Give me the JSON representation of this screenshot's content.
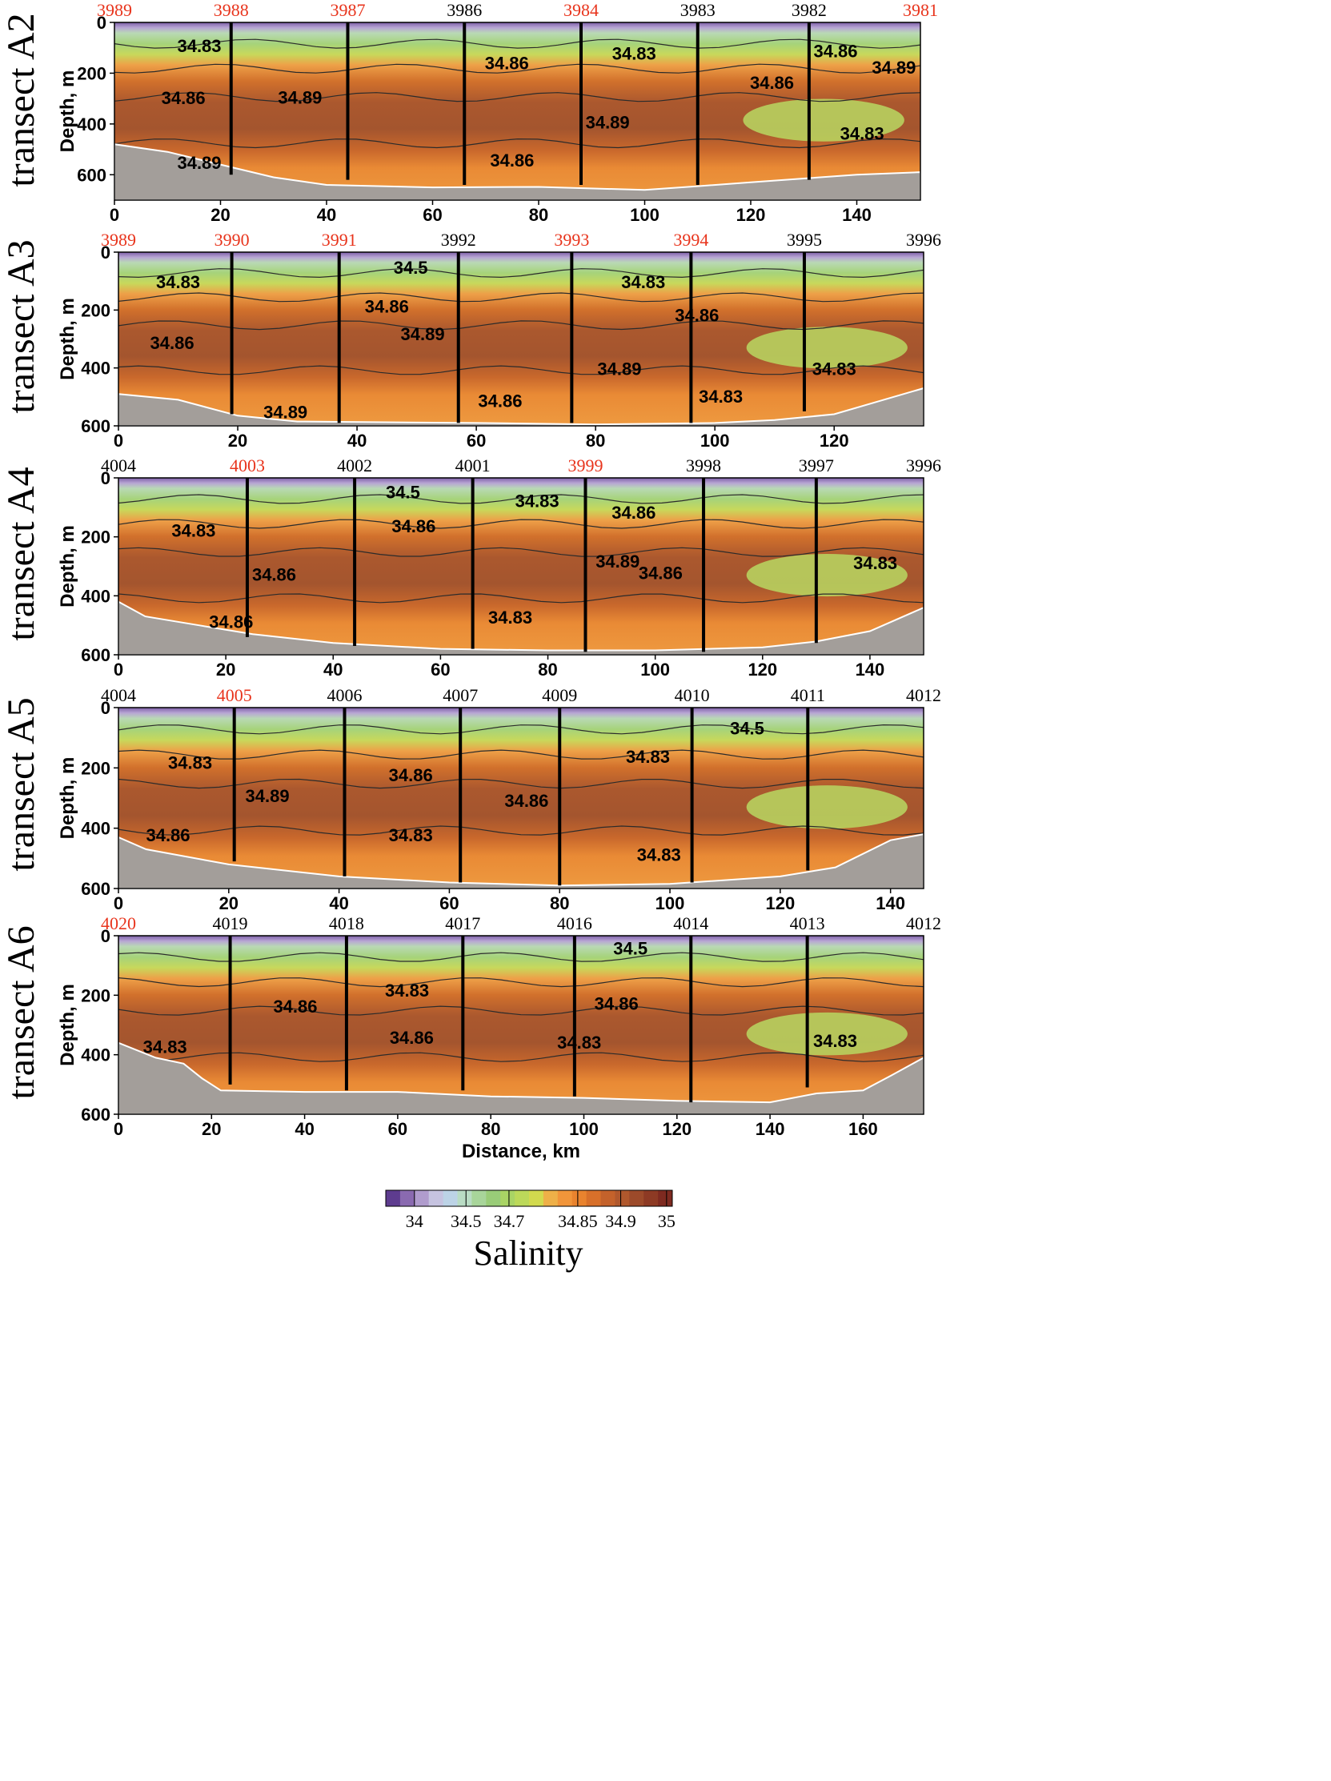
{
  "chart_data": [
    {
      "type": "heatmap",
      "title": "transect A2",
      "ylabel": "Depth, m",
      "xlabel": "",
      "xlim": [
        0,
        152
      ],
      "ylim": [
        0,
        700
      ],
      "x_ticks": [
        "0",
        "20",
        "40",
        "60",
        "80",
        "100",
        "120",
        "140"
      ],
      "y_ticks": [
        "0",
        "200",
        "400",
        "600"
      ],
      "stations": [
        {
          "id": "3989",
          "x": 0,
          "highlight": true
        },
        {
          "id": "3988",
          "x": 22,
          "highlight": true
        },
        {
          "id": "3987",
          "x": 44,
          "highlight": true
        },
        {
          "id": "3986",
          "x": 66,
          "highlight": false
        },
        {
          "id": "3984",
          "x": 88,
          "highlight": true
        },
        {
          "id": "3983",
          "x": 110,
          "highlight": false
        },
        {
          "id": "3982",
          "x": 131,
          "highlight": false
        },
        {
          "id": "3981",
          "x": 152,
          "highlight": true
        }
      ],
      "cast_depths": [
        0,
        600,
        620,
        640,
        640,
        640,
        620,
        0
      ],
      "bottom": [
        [
          0,
          480
        ],
        [
          10,
          510
        ],
        [
          20,
          560
        ],
        [
          30,
          610
        ],
        [
          40,
          640
        ],
        [
          60,
          650
        ],
        [
          80,
          648
        ],
        [
          100,
          660
        ],
        [
          110,
          645
        ],
        [
          120,
          630
        ],
        [
          130,
          615
        ],
        [
          140,
          600
        ],
        [
          152,
          590
        ]
      ],
      "contour_labels": [
        {
          "text": "34.83",
          "x": 16,
          "y": 95
        },
        {
          "text": "34.86",
          "x": 13,
          "y": 300
        },
        {
          "text": "34.89",
          "x": 35,
          "y": 298
        },
        {
          "text": "34.89",
          "x": 16,
          "y": 555
        },
        {
          "text": "34.86",
          "x": 74,
          "y": 163
        },
        {
          "text": "34.83",
          "x": 98,
          "y": 125
        },
        {
          "text": "34.89",
          "x": 93,
          "y": 395
        },
        {
          "text": "34.86",
          "x": 75,
          "y": 545
        },
        {
          "text": "34.86",
          "x": 124,
          "y": 240
        },
        {
          "text": "34.86",
          "x": 136,
          "y": 115
        },
        {
          "text": "34.89",
          "x": 147,
          "y": 180
        },
        {
          "text": "34.83",
          "x": 141,
          "y": 440
        }
      ]
    },
    {
      "type": "heatmap",
      "title": "transect A3",
      "ylabel": "Depth, m",
      "xlabel": "",
      "xlim": [
        0,
        135
      ],
      "ylim": [
        0,
        600
      ],
      "x_ticks": [
        "0",
        "20",
        "40",
        "60",
        "80",
        "100",
        "120"
      ],
      "y_ticks": [
        "0",
        "200",
        "400",
        "600"
      ],
      "stations": [
        {
          "id": "3989",
          "x": 0,
          "highlight": true
        },
        {
          "id": "3990",
          "x": 19,
          "highlight": true
        },
        {
          "id": "3991",
          "x": 37,
          "highlight": true
        },
        {
          "id": "3992",
          "x": 57,
          "highlight": false
        },
        {
          "id": "3993",
          "x": 76,
          "highlight": true
        },
        {
          "id": "3994",
          "x": 96,
          "highlight": true
        },
        {
          "id": "3995",
          "x": 115,
          "highlight": false
        },
        {
          "id": "3996",
          "x": 135,
          "highlight": false
        }
      ],
      "cast_depths": [
        0,
        560,
        590,
        590,
        590,
        590,
        550,
        0
      ],
      "bottom": [
        [
          0,
          490
        ],
        [
          10,
          510
        ],
        [
          20,
          565
        ],
        [
          30,
          585
        ],
        [
          60,
          590
        ],
        [
          80,
          595
        ],
        [
          100,
          590
        ],
        [
          110,
          580
        ],
        [
          120,
          560
        ],
        [
          130,
          500
        ],
        [
          135,
          470
        ]
      ],
      "contour_labels": [
        {
          "text": "34.83",
          "x": 10,
          "y": 105
        },
        {
          "text": "34.5",
          "x": 49,
          "y": 55
        },
        {
          "text": "34.83",
          "x": 88,
          "y": 105
        },
        {
          "text": "34.86",
          "x": 45,
          "y": 190
        },
        {
          "text": "34.86",
          "x": 97,
          "y": 220
        },
        {
          "text": "34.86",
          "x": 9,
          "y": 315
        },
        {
          "text": "34.89",
          "x": 51,
          "y": 285
        },
        {
          "text": "34.89",
          "x": 84,
          "y": 405
        },
        {
          "text": "34.83",
          "x": 120,
          "y": 405
        },
        {
          "text": "34.83",
          "x": 101,
          "y": 500
        },
        {
          "text": "34.86",
          "x": 64,
          "y": 515
        },
        {
          "text": "34.89",
          "x": 28,
          "y": 555
        }
      ]
    },
    {
      "type": "heatmap",
      "title": "transect A4",
      "ylabel": "Depth, m",
      "xlabel": "",
      "xlim": [
        0,
        150
      ],
      "ylim": [
        0,
        600
      ],
      "x_ticks": [
        "0",
        "20",
        "40",
        "60",
        "80",
        "100",
        "120",
        "140"
      ],
      "y_ticks": [
        "0",
        "200",
        "400",
        "600"
      ],
      "stations": [
        {
          "id": "4004",
          "x": 0,
          "highlight": false
        },
        {
          "id": "4003",
          "x": 24,
          "highlight": true
        },
        {
          "id": "4002",
          "x": 44,
          "highlight": false
        },
        {
          "id": "4001",
          "x": 66,
          "highlight": false
        },
        {
          "id": "3999",
          "x": 87,
          "highlight": true
        },
        {
          "id": "3998",
          "x": 109,
          "highlight": false
        },
        {
          "id": "3997",
          "x": 130,
          "highlight": false
        },
        {
          "id": "3996",
          "x": 150,
          "highlight": false
        }
      ],
      "cast_depths": [
        0,
        540,
        570,
        580,
        590,
        590,
        560,
        0
      ],
      "bottom": [
        [
          0,
          420
        ],
        [
          5,
          470
        ],
        [
          15,
          500
        ],
        [
          25,
          530
        ],
        [
          40,
          560
        ],
        [
          60,
          580
        ],
        [
          80,
          585
        ],
        [
          100,
          585
        ],
        [
          120,
          575
        ],
        [
          130,
          555
        ],
        [
          140,
          520
        ],
        [
          150,
          440
        ]
      ],
      "contour_labels": [
        {
          "text": "34.5",
          "x": 53,
          "y": 50
        },
        {
          "text": "34.83",
          "x": 78,
          "y": 80
        },
        {
          "text": "34.83",
          "x": 14,
          "y": 180
        },
        {
          "text": "34.86",
          "x": 55,
          "y": 165
        },
        {
          "text": "34.86",
          "x": 96,
          "y": 120
        },
        {
          "text": "34.89",
          "x": 93,
          "y": 285
        },
        {
          "text": "34.86",
          "x": 29,
          "y": 330
        },
        {
          "text": "34.86",
          "x": 101,
          "y": 325
        },
        {
          "text": "34.83",
          "x": 141,
          "y": 290
        },
        {
          "text": "34.83",
          "x": 73,
          "y": 475
        },
        {
          "text": "34.86",
          "x": 21,
          "y": 490
        }
      ]
    },
    {
      "type": "heatmap",
      "title": "transect A5",
      "ylabel": "Depth, m",
      "xlabel": "",
      "xlim": [
        0,
        146
      ],
      "ylim": [
        0,
        600
      ],
      "x_ticks": [
        "0",
        "20",
        "40",
        "60",
        "80",
        "100",
        "120",
        "140"
      ],
      "y_ticks": [
        "0",
        "200",
        "400",
        "600"
      ],
      "stations": [
        {
          "id": "4004",
          "x": 0,
          "highlight": false
        },
        {
          "id": "4005",
          "x": 21,
          "highlight": true
        },
        {
          "id": "4006",
          "x": 41,
          "highlight": false
        },
        {
          "id": "4007",
          "x": 62,
          "highlight": false
        },
        {
          "id": "4009",
          "x": 80,
          "highlight": false
        },
        {
          "id": "4010",
          "x": 104,
          "highlight": false
        },
        {
          "id": "4011",
          "x": 125,
          "highlight": false
        },
        {
          "id": "4012",
          "x": 146,
          "highlight": false
        }
      ],
      "cast_depths": [
        0,
        510,
        560,
        580,
        590,
        580,
        540,
        0
      ],
      "bottom": [
        [
          0,
          430
        ],
        [
          5,
          470
        ],
        [
          20,
          520
        ],
        [
          40,
          560
        ],
        [
          60,
          580
        ],
        [
          80,
          590
        ],
        [
          100,
          585
        ],
        [
          120,
          560
        ],
        [
          130,
          530
        ],
        [
          140,
          440
        ],
        [
          146,
          420
        ]
      ],
      "contour_labels": [
        {
          "text": "34.83",
          "x": 13,
          "y": 185
        },
        {
          "text": "34.5",
          "x": 114,
          "y": 70
        },
        {
          "text": "34.83",
          "x": 96,
          "y": 165
        },
        {
          "text": "34.86",
          "x": 53,
          "y": 225
        },
        {
          "text": "34.89",
          "x": 27,
          "y": 295
        },
        {
          "text": "34.86",
          "x": 74,
          "y": 310
        },
        {
          "text": "34.86",
          "x": 9,
          "y": 425
        },
        {
          "text": "34.83",
          "x": 53,
          "y": 425
        },
        {
          "text": "34.83",
          "x": 98,
          "y": 490
        }
      ]
    },
    {
      "type": "heatmap",
      "title": "transect A6",
      "ylabel": "Depth, m",
      "xlabel": "Distance, km",
      "xlim": [
        0,
        173
      ],
      "ylim": [
        0,
        600
      ],
      "x_ticks": [
        "0",
        "20",
        "40",
        "60",
        "80",
        "100",
        "120",
        "140",
        "160"
      ],
      "y_ticks": [
        "0",
        "200",
        "400",
        "600"
      ],
      "stations": [
        {
          "id": "4020",
          "x": 0,
          "highlight": true
        },
        {
          "id": "4019",
          "x": 24,
          "highlight": false
        },
        {
          "id": "4018",
          "x": 49,
          "highlight": false
        },
        {
          "id": "4017",
          "x": 74,
          "highlight": false
        },
        {
          "id": "4016",
          "x": 98,
          "highlight": false
        },
        {
          "id": "4014",
          "x": 123,
          "highlight": false
        },
        {
          "id": "4013",
          "x": 148,
          "highlight": false
        },
        {
          "id": "4012",
          "x": 173,
          "highlight": false
        }
      ],
      "cast_depths": [
        0,
        500,
        520,
        520,
        540,
        560,
        510,
        0
      ],
      "bottom": [
        [
          0,
          360
        ],
        [
          8,
          410
        ],
        [
          14,
          430
        ],
        [
          18,
          480
        ],
        [
          22,
          520
        ],
        [
          40,
          525
        ],
        [
          60,
          525
        ],
        [
          80,
          540
        ],
        [
          100,
          545
        ],
        [
          120,
          555
        ],
        [
          140,
          560
        ],
        [
          150,
          530
        ],
        [
          160,
          520
        ],
        [
          166,
          470
        ],
        [
          173,
          410
        ]
      ],
      "contour_labels": [
        {
          "text": "34.5",
          "x": 110,
          "y": 45
        },
        {
          "text": "34.83",
          "x": 62,
          "y": 185
        },
        {
          "text": "34.86",
          "x": 38,
          "y": 240
        },
        {
          "text": "34.86",
          "x": 107,
          "y": 230
        },
        {
          "text": "34.86",
          "x": 63,
          "y": 345
        },
        {
          "text": "34.83",
          "x": 99,
          "y": 360
        },
        {
          "text": "34.83",
          "x": 154,
          "y": 355
        },
        {
          "text": "34.83",
          "x": 10,
          "y": 375
        }
      ]
    }
  ],
  "colorbar": {
    "title": "Salinity",
    "tick_labels": [
      "34",
      "34.5",
      "34.7",
      "34.85",
      "34.9",
      "35"
    ],
    "colors": [
      "#5e3c8f",
      "#8a6ab0",
      "#b09ccd",
      "#c6c3e0",
      "#bcd3e6",
      "#b9dcc4",
      "#a8d59a",
      "#99cc78",
      "#a9d465",
      "#bcd95a",
      "#d2da4e",
      "#eeb048",
      "#f1953a",
      "#e9832e",
      "#d8702a",
      "#c4622b",
      "#b0582d",
      "#9c4a2a",
      "#8d3a24",
      "#7e2a20"
    ]
  },
  "colors": {
    "highlight_station": "#e8341c",
    "normal_station": "#000000",
    "seafloor": "#a39e9a"
  }
}
